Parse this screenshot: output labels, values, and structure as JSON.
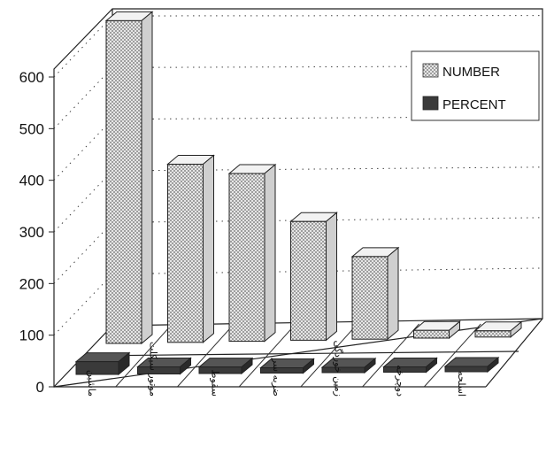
{
  "chart_data": {
    "type": "bar",
    "categories": [
      "ماشین",
      "موتور سیکلت",
      "سقوط",
      "ضربه سر",
      "زمین خوردگی",
      "دوچرخه",
      "اسلحه"
    ],
    "series": [
      {
        "name": "NUMBER",
        "values": [
          625,
          345,
          325,
          230,
          160,
          15,
          12
        ]
      },
      {
        "name": "PERCENT",
        "values": [
          45,
          25,
          23,
          16,
          11,
          1,
          1
        ]
      }
    ],
    "yticks": [
      0,
      100,
      200,
      300,
      400,
      500,
      600
    ],
    "ylim": [
      0,
      660
    ],
    "grid": true,
    "legend_position": "top-right",
    "colors": {
      "number": "#d9d9d9",
      "number_pattern": "#7a7a7a",
      "percent": "#3a3a3a"
    }
  }
}
